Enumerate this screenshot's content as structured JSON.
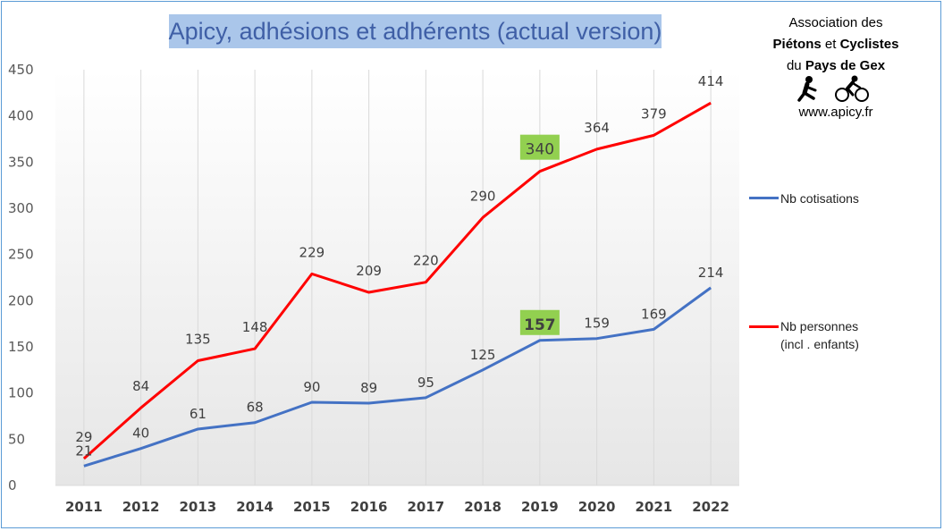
{
  "title": "Apicy, adhésions et adhérents (actual version)",
  "association": {
    "line1": "Association des",
    "line2_b1": "Piétons",
    "line2_mid": " et ",
    "line2_b2": "Cyclistes",
    "line3_pre": "du ",
    "line3_b": "Pays de Gex",
    "website": "www.apicy.fr",
    "icons": [
      "walker-icon",
      "cyclist-icon"
    ]
  },
  "legend": [
    {
      "label": "Nb cotisations",
      "color": "#4472c4"
    },
    {
      "label_line1": "Nb personnes",
      "label_line2": "(incl . enfants)",
      "color": "#ff0000"
    }
  ],
  "highlight_color": "#92d050",
  "chart_data": {
    "type": "line",
    "title": "Apicy, adhésions et adhérents (actual version)",
    "x": [
      "2011",
      "2012",
      "2013",
      "2014",
      "2015",
      "2016",
      "2017",
      "2018",
      "2019",
      "2020",
      "2021",
      "2022"
    ],
    "ylim": [
      0,
      450
    ],
    "yticks": [
      0,
      50,
      100,
      150,
      200,
      250,
      300,
      350,
      400,
      450
    ],
    "grid": "vertical",
    "legend_position": "right",
    "series": [
      {
        "name": "Nb cotisations",
        "color": "#4472c4",
        "values": [
          21,
          40,
          61,
          68,
          90,
          89,
          95,
          125,
          157,
          159,
          169,
          214
        ],
        "highlight_index": 8
      },
      {
        "name": "Nb personnes (incl . enfants)",
        "color": "#ff0000",
        "values": [
          29,
          84,
          135,
          148,
          229,
          209,
          220,
          290,
          340,
          364,
          379,
          414
        ],
        "highlight_index": 8
      }
    ]
  }
}
